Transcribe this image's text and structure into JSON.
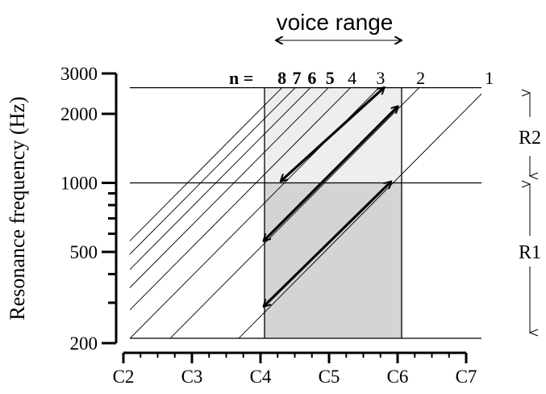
{
  "chart_data": {
    "type": "line",
    "title": "",
    "ylabel": "Resonance frequency (Hz)",
    "xlabel": "",
    "x_categories": [
      "C2",
      "C3",
      "C4",
      "C5",
      "C6",
      "C7"
    ],
    "y_ticks": [
      200,
      500,
      1000,
      2000,
      3000
    ],
    "y_scale": "log",
    "ylim": [
      200,
      3000
    ],
    "voice_range": {
      "label": "voice range",
      "from_note": "C4",
      "to_note": "C6"
    },
    "harmonic_prefix": "n =",
    "harmonic_lines": [
      {
        "n": 8,
        "label": "8"
      },
      {
        "n": 7,
        "label": "7"
      },
      {
        "n": 6,
        "label": "6"
      },
      {
        "n": 5,
        "label": "5"
      },
      {
        "n": 4,
        "label": "4"
      },
      {
        "n": 3,
        "label": "3"
      },
      {
        "n": 2,
        "label": "2"
      },
      {
        "n": 1,
        "label": "1"
      }
    ],
    "regions": [
      {
        "name": "R2",
        "label": "R2",
        "freq_range_hz": [
          1000,
          2600
        ],
        "note_range": [
          "C4",
          "C6"
        ],
        "fill": "#eeeeee"
      },
      {
        "name": "R1",
        "label": "R1",
        "freq_range_hz": [
          210,
          1000
        ],
        "note_range": [
          "C4",
          "C6"
        ],
        "fill": "#d4d4d4"
      }
    ],
    "arrows": [
      {
        "from": {
          "note": 4.3,
          "hz": 1020
        },
        "to": {
          "note": 5.8,
          "hz": 2600
        }
      },
      {
        "from": {
          "note": 4.05,
          "hz": 560
        },
        "to": {
          "note": 6.0,
          "hz": 2150
        }
      },
      {
        "from": {
          "note": 4.05,
          "hz": 290
        },
        "to": {
          "note": 5.9,
          "hz": 1010
        }
      }
    ],
    "grid": false,
    "colors": {
      "line": "#000000",
      "r1_fill": "#d4d4d4",
      "r2_fill": "#eeeeee"
    }
  }
}
